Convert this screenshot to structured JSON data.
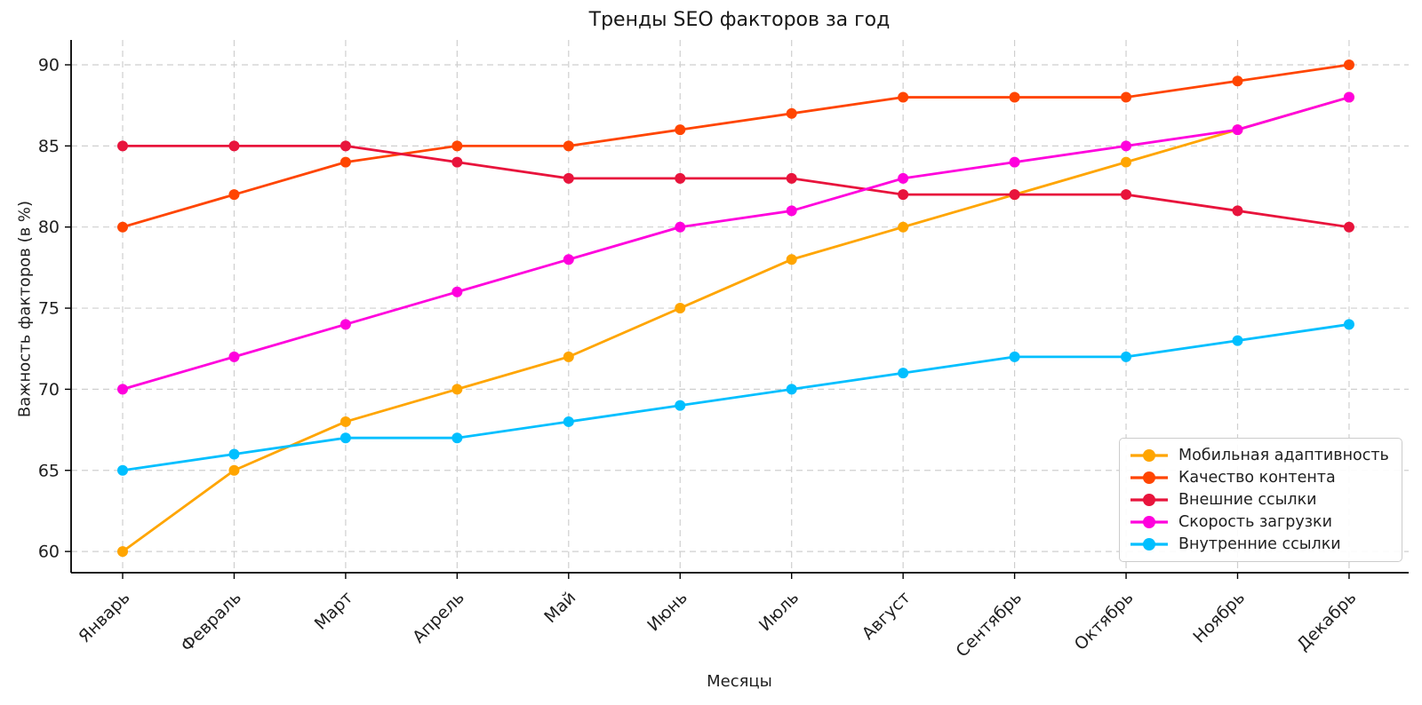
{
  "chart_data": {
    "type": "line",
    "title": "Тренды SEO факторов за год",
    "xlabel": "Месяцы",
    "ylabel": "Важность факторов (в %)",
    "categories": [
      "Январь",
      "Февраль",
      "Март",
      "Апрель",
      "Май",
      "Июнь",
      "Июль",
      "Август",
      "Сентябрь",
      "Октябрь",
      "Ноябрь",
      "Декабрь"
    ],
    "series": [
      {
        "name": "Мобильная адаптивность",
        "color": "#FFA500",
        "values": [
          60,
          65,
          68,
          70,
          72,
          75,
          78,
          80,
          82,
          84,
          86,
          88
        ]
      },
      {
        "name": "Качество контента",
        "color": "#FF4500",
        "values": [
          80,
          82,
          84,
          85,
          85,
          86,
          87,
          88,
          88,
          88,
          89,
          90
        ]
      },
      {
        "name": "Внешние ссылки",
        "color": "#E8143C",
        "values": [
          85,
          85,
          85,
          84,
          83,
          83,
          83,
          82,
          82,
          82,
          81,
          80
        ]
      },
      {
        "name": "Скорость загрузки",
        "color": "#FF00DD",
        "values": [
          70,
          72,
          74,
          76,
          78,
          80,
          81,
          83,
          84,
          85,
          86,
          88
        ]
      },
      {
        "name": "Внутренние ссылки",
        "color": "#00BFFF",
        "values": [
          65,
          66,
          67,
          67,
          68,
          69,
          70,
          71,
          72,
          72,
          73,
          74
        ]
      }
    ],
    "yticks": [
      60,
      65,
      70,
      75,
      80,
      85,
      90
    ],
    "ylim": [
      58.7,
      91.5
    ],
    "grid": true,
    "grid_color": "#cfcfcf",
    "axis_color": "#000000",
    "text_color": "#1f1f1f",
    "legend_position": "lower right"
  }
}
